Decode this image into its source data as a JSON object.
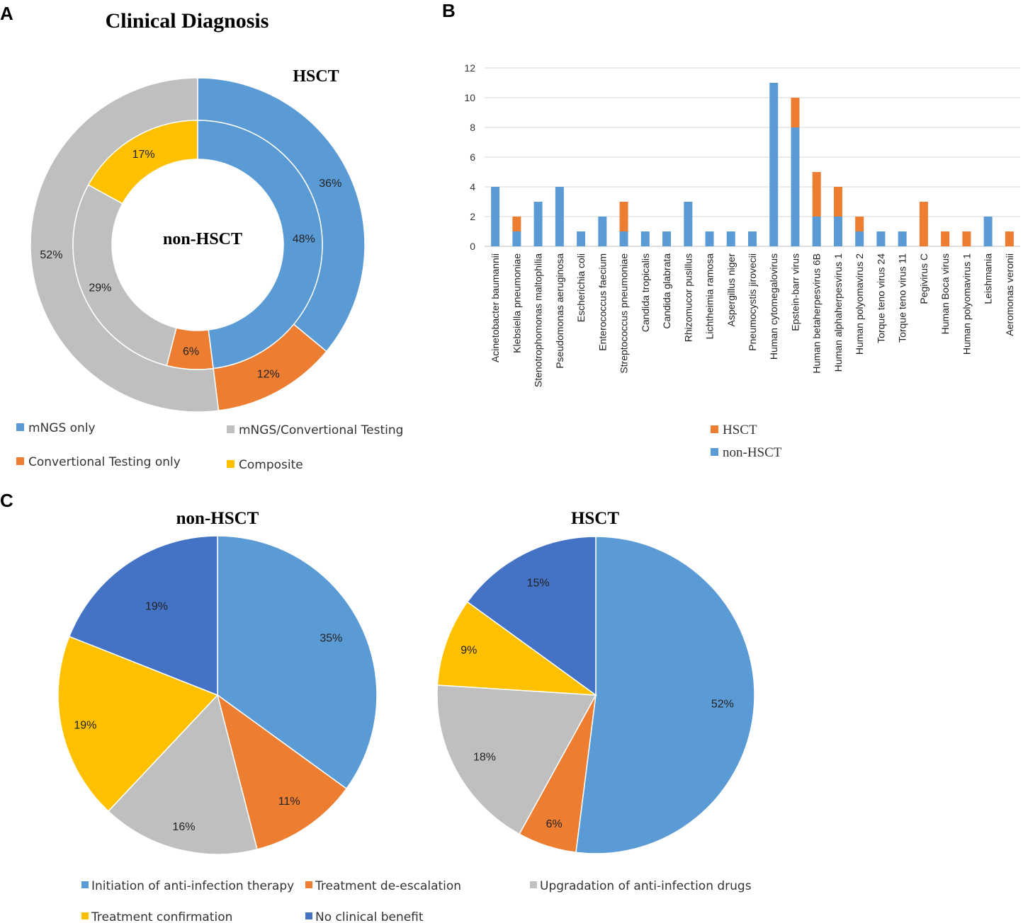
{
  "panels": {
    "a": "A",
    "b": "B",
    "c": "C"
  },
  "colors": {
    "blue": "#5B9BD5",
    "orange": "#ED7D31",
    "gray": "#BFBFBF",
    "yellow": "#FFC000",
    "darkblue": "#4472C4"
  },
  "chart_data": [
    {
      "id": "A",
      "type": "pie",
      "subtype": "nested-donut",
      "title": "Clinical Diagnosis",
      "outer_label": "HSCT",
      "inner_label": "non-HSCT",
      "categories": [
        "mNGS only",
        "Convertional Testing only",
        "mNGS/Convertional Testing",
        "Composite"
      ],
      "series": [
        {
          "name": "HSCT",
          "ring": "outer",
          "values": [
            36,
            12,
            52,
            0
          ],
          "labels": [
            "36%",
            "12%",
            "52%",
            ""
          ]
        },
        {
          "name": "non-HSCT",
          "ring": "inner",
          "values": [
            48,
            6,
            29,
            17
          ],
          "labels": [
            "48%",
            "6%",
            "29%",
            "17%"
          ]
        }
      ],
      "legend": [
        "mNGS only",
        "mNGS/Convertional Testing",
        "Convertional Testing only",
        "Composite"
      ]
    },
    {
      "id": "B",
      "type": "bar",
      "stacked": true,
      "categories": [
        "Acinetobacter baumannii",
        "Klebsiella pneumoniae",
        "Stenotrophomonas maltophilia",
        "Pseudomonas aeruginosa",
        "Escherichia coli",
        "Enterococcus faecium",
        "Streptococcus pneumoniae",
        "Candida tropicalis",
        "Candida glabrata",
        "Rhizomucor pusillus",
        "Lichtheimia ramosa",
        "Aspergillus niger",
        "Pneumocystis jirovecii",
        "Human cytomegalovirus",
        "Epstein-barr virus",
        "Human betaherpesvirus 6B",
        "Human alphaherpesvirus 1",
        "Human polyomavirus 2",
        "Torque teno virus 24",
        "Torque teno virus 11",
        "Pegivirus C",
        "Human Boca virus",
        "Human polyomavirus 1",
        "Leishmania",
        "Aeromonas veronii"
      ],
      "series": [
        {
          "name": "non-HSCT",
          "values": [
            4,
            1,
            3,
            4,
            1,
            2,
            1,
            1,
            1,
            3,
            1,
            1,
            1,
            11,
            8,
            2,
            2,
            1,
            1,
            1,
            0,
            0,
            0,
            2,
            0
          ]
        },
        {
          "name": "HSCT",
          "values": [
            0,
            1,
            0,
            0,
            0,
            0,
            2,
            0,
            0,
            0,
            0,
            0,
            0,
            0,
            2,
            3,
            2,
            1,
            0,
            0,
            3,
            1,
            1,
            0,
            1
          ]
        }
      ],
      "ylim": [
        0,
        12
      ],
      "yticks": [
        "0",
        "2",
        "4",
        "6",
        "8",
        "10",
        "12"
      ],
      "legend": [
        "HSCT",
        "non-HSCT"
      ]
    },
    {
      "id": "C1",
      "type": "pie",
      "title": "non-HSCT",
      "values": [
        35,
        11,
        16,
        19,
        19
      ],
      "labels": [
        "35%",
        "11%",
        "16%",
        "19%",
        "19%"
      ]
    },
    {
      "id": "C2",
      "type": "pie",
      "title": "HSCT",
      "values": [
        52,
        6,
        18,
        9,
        15
      ],
      "labels": [
        "52%",
        "6%",
        "18%",
        "9%",
        "15%"
      ]
    }
  ],
  "pie_c_categories": [
    "Initiation of anti-infection therapy",
    "Treatment de-escalation",
    "Upgradation of anti-infection drugs",
    "Treatment confirmation",
    "No clinical benefit"
  ],
  "legend_c": [
    "Initiation of anti-infection therapy",
    "Treatment de-escalation",
    "Upgradation of anti-infection drugs",
    "Treatment confirmation",
    "No clinical benefit"
  ]
}
